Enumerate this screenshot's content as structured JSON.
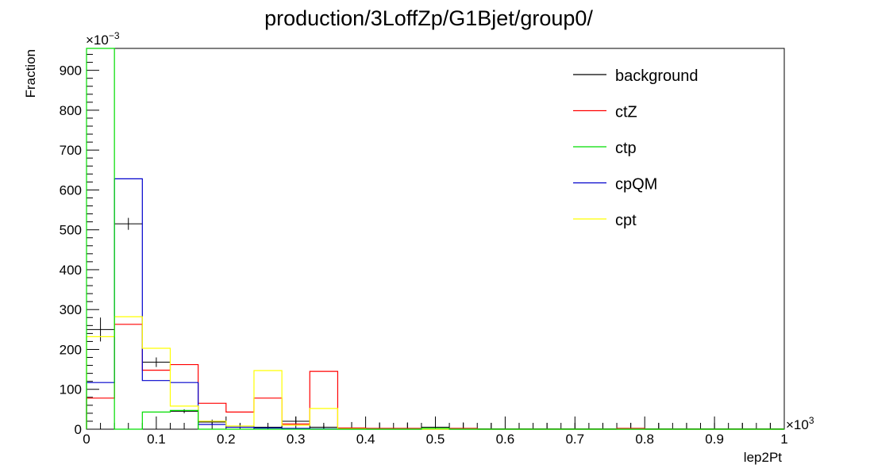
{
  "chart_data": {
    "type": "histogram",
    "title": "production/3LoffZp/G1Bjet/group0/",
    "xlabel": "lep2Pt",
    "ylabel": "Fraction",
    "x_multiplier": "×10",
    "x_multiplier_exp": "3",
    "y_multiplier": "×10",
    "y_multiplier_exp": "−3",
    "xlim": [
      0,
      1
    ],
    "ylim": [
      0,
      955
    ],
    "x_ticks": [
      0,
      0.1,
      0.2,
      0.3,
      0.4,
      0.5,
      0.6,
      0.7,
      0.8,
      0.9,
      1
    ],
    "x_tick_labels": [
      "0",
      "0.1",
      "0.2",
      "0.3",
      "0.4",
      "0.5",
      "0.6",
      "0.7",
      "0.8",
      "0.9",
      "1"
    ],
    "y_ticks": [
      0,
      100,
      200,
      300,
      400,
      500,
      600,
      700,
      800,
      900
    ],
    "y_tick_labels": [
      "0",
      "100",
      "200",
      "300",
      "400",
      "500",
      "600",
      "700",
      "800",
      "900"
    ],
    "bin_edges": [
      0,
      0.04,
      0.08,
      0.12,
      0.16,
      0.2,
      0.24,
      0.28,
      0.32,
      0.36,
      0.4,
      0.44,
      0.48,
      0.52,
      0.56,
      0.6,
      0.64,
      0.68,
      0.72,
      0.76,
      0.8,
      0.84,
      0.88,
      0.92,
      0.96,
      1.0
    ],
    "legend_position": "top-right",
    "grid": false,
    "series": [
      {
        "name": "background",
        "color": "#000000",
        "style": "markers-errors",
        "values": [
          250,
          515,
          168,
          45,
          18,
          8,
          5,
          20,
          5,
          3,
          2,
          2,
          5,
          2,
          1,
          1,
          1,
          1,
          1,
          1,
          1,
          1,
          1,
          1,
          1
        ],
        "errors": [
          30,
          15,
          12,
          5,
          6,
          4,
          3,
          12,
          5,
          15,
          15,
          15,
          15,
          15,
          15,
          15,
          15,
          15,
          15,
          15,
          15,
          15,
          15,
          15,
          15
        ]
      },
      {
        "name": "ctZ",
        "color": "#ff0000",
        "style": "step",
        "values": [
          78,
          263,
          148,
          162,
          65,
          43,
          78,
          13,
          145,
          3,
          2,
          2,
          1,
          2,
          0,
          0,
          0,
          0,
          0,
          2,
          0,
          0,
          0,
          0,
          0
        ]
      },
      {
        "name": "ctp",
        "color": "#00dd00",
        "style": "step",
        "values": [
          955,
          0,
          43,
          47,
          0,
          0,
          0,
          0,
          0,
          0,
          0,
          0,
          2,
          0,
          0,
          0,
          0,
          0,
          0,
          0,
          0,
          0,
          0,
          0,
          0
        ]
      },
      {
        "name": "cpQM",
        "color": "#0000cc",
        "style": "step",
        "values": [
          117,
          628,
          122,
          117,
          12,
          5,
          3,
          2,
          1,
          0,
          0,
          0,
          0,
          0,
          0,
          0,
          0,
          0,
          0,
          0,
          0,
          0,
          0,
          0,
          0
        ]
      },
      {
        "name": "cpt",
        "color": "#ffff00",
        "style": "step",
        "values": [
          232,
          282,
          203,
          58,
          20,
          8,
          147,
          10,
          52,
          1,
          0,
          0,
          0,
          0,
          0,
          0,
          0,
          0,
          0,
          0,
          0,
          0,
          0,
          0,
          0
        ]
      }
    ]
  }
}
